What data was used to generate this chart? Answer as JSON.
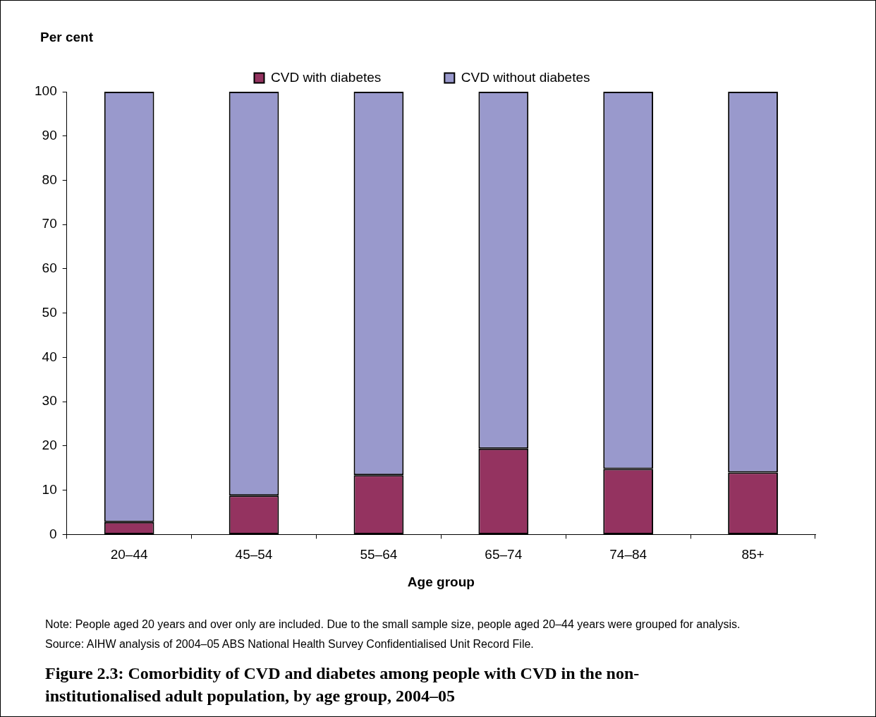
{
  "chart_data": {
    "type": "bar",
    "stacked": true,
    "title": "Figure 2.3: Comorbidity of CVD and diabetes among people with CVD in the non-institutionalised adult population, by age group, 2004–05",
    "xlabel": "Age group",
    "ylabel": "Per cent",
    "categories": [
      "20–44",
      "45–54",
      "55–64",
      "65–74",
      "74–84",
      "85+"
    ],
    "series": [
      {
        "name": "CVD with diabetes",
        "color": "#943360",
        "values": [
          2.8,
          8.8,
          13.4,
          19.4,
          14.8,
          14.0
        ]
      },
      {
        "name": "CVD without diabetes",
        "color": "#9999cc",
        "values": [
          97.2,
          91.2,
          86.6,
          80.6,
          85.2,
          86.0
        ]
      }
    ],
    "ylim": [
      0,
      100
    ],
    "yticks": [
      0,
      10,
      20,
      30,
      40,
      50,
      60,
      70,
      80,
      90,
      100
    ],
    "grid": false,
    "legend": "top",
    "annotations": [
      "Note: People aged 20 years and over only are included. Due to the small sample size, people aged 20–44 years were grouped for analysis.",
      "Source: AIHW analysis of 2004–05 ABS National Health Survey Confidentialised Unit Record File."
    ]
  }
}
